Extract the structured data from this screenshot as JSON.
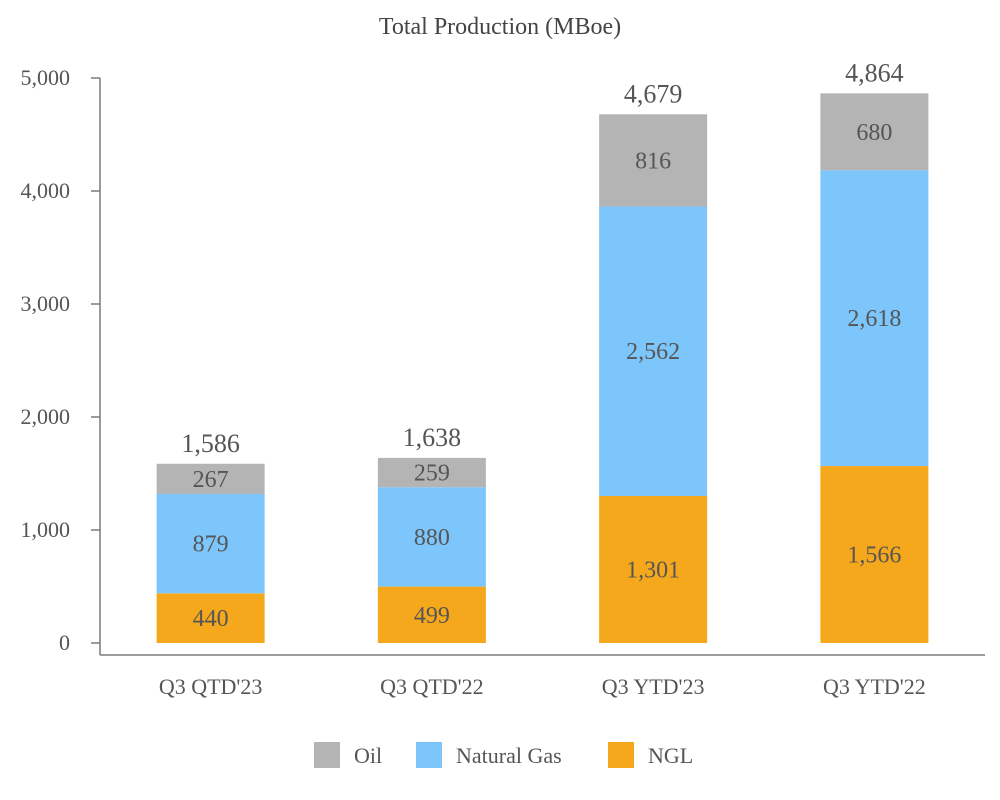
{
  "chart_data": {
    "type": "bar",
    "stacked": true,
    "title": "Total Production (MBoe)",
    "xlabel": "",
    "ylabel": "",
    "ylim": [
      0,
      5000
    ],
    "yticks": [
      0,
      1000,
      2000,
      3000,
      4000,
      5000
    ],
    "ytick_labels": [
      "0",
      "1,000",
      "2,000",
      "3,000",
      "4,000",
      "5,000"
    ],
    "grid": false,
    "legend_position": "bottom",
    "categories": [
      "Q3 QTD'23",
      "Q3 QTD'22",
      "Q3 YTD'23",
      "Q3 YTD'22"
    ],
    "series": [
      {
        "name": "NGL",
        "color": "#F5A81C",
        "values": [
          440,
          499,
          1301,
          1566
        ],
        "labels": [
          "440",
          "499",
          "1,301",
          "1,566"
        ]
      },
      {
        "name": "Natural Gas",
        "color": "#7DC6FB",
        "values": [
          879,
          880,
          2562,
          2618
        ],
        "labels": [
          "879",
          "880",
          "2,562",
          "2,618"
        ]
      },
      {
        "name": "Oil",
        "color": "#B4B4B4",
        "values": [
          267,
          259,
          816,
          680
        ],
        "labels": [
          "267",
          "259",
          "816",
          "680"
        ]
      }
    ],
    "totals": [
      1586,
      1638,
      4679,
      4864
    ],
    "total_labels": [
      "1,586",
      "1,638",
      "4,679",
      "4,864"
    ],
    "legend_order": [
      "Oil",
      "Natural Gas",
      "NGL"
    ]
  }
}
